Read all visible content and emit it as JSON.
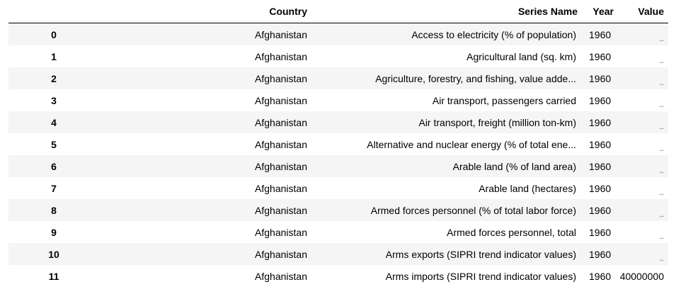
{
  "table": {
    "columns": {
      "index": "",
      "country": "Country",
      "series_name": "Series Name",
      "year": "Year",
      "value": "Value"
    },
    "rows": [
      {
        "index": "0",
        "country": "Afghanistan",
        "series_name": "Access to electricity (% of population)",
        "year": "1960",
        "value": ".."
      },
      {
        "index": "1",
        "country": "Afghanistan",
        "series_name": "Agricultural land (sq. km)",
        "year": "1960",
        "value": ".."
      },
      {
        "index": "2",
        "country": "Afghanistan",
        "series_name": "Agriculture, forestry, and fishing, value adde...",
        "year": "1960",
        "value": ".."
      },
      {
        "index": "3",
        "country": "Afghanistan",
        "series_name": "Air transport, passengers carried",
        "year": "1960",
        "value": ".."
      },
      {
        "index": "4",
        "country": "Afghanistan",
        "series_name": "Air transport, freight (million ton-km)",
        "year": "1960",
        "value": ".."
      },
      {
        "index": "5",
        "country": "Afghanistan",
        "series_name": "Alternative and nuclear energy (% of total ene...",
        "year": "1960",
        "value": ".."
      },
      {
        "index": "6",
        "country": "Afghanistan",
        "series_name": "Arable land (% of land area)",
        "year": "1960",
        "value": ".."
      },
      {
        "index": "7",
        "country": "Afghanistan",
        "series_name": "Arable land (hectares)",
        "year": "1960",
        "value": ".."
      },
      {
        "index": "8",
        "country": "Afghanistan",
        "series_name": "Armed forces personnel (% of total labor force)",
        "year": "1960",
        "value": ".."
      },
      {
        "index": "9",
        "country": "Afghanistan",
        "series_name": "Armed forces personnel, total",
        "year": "1960",
        "value": ".."
      },
      {
        "index": "10",
        "country": "Afghanistan",
        "series_name": "Arms exports (SIPRI trend indicator values)",
        "year": "1960",
        "value": ".."
      },
      {
        "index": "11",
        "country": "Afghanistan",
        "series_name": "Arms imports (SIPRI trend indicator values)",
        "year": "1960",
        "value": "40000000"
      }
    ]
  }
}
